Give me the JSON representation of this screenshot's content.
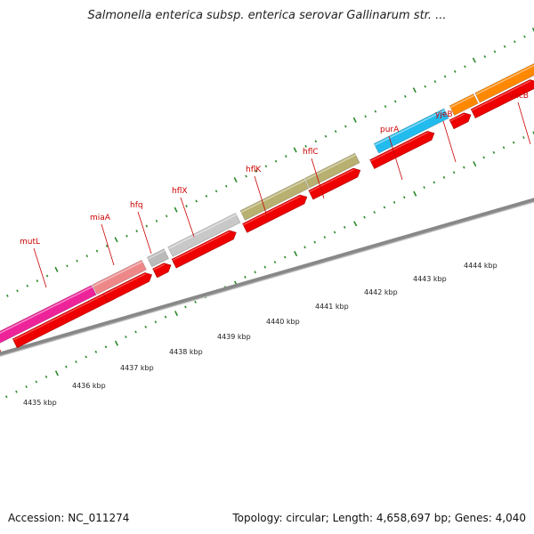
{
  "title": "Salmonella enterica subsp. enterica serovar Gallinarum str. ...",
  "accession": "Accession: NC_011274",
  "summary": "Topology: circular; Length: 4,658,697 bp; Genes: 4,040",
  "colors": {
    "cds": "#ee0000",
    "backbone": "#888888",
    "tick": "#2a8a2a",
    "label": "#cc0000"
  },
  "genes": [
    {
      "name": "mutL",
      "color": "#ee2299"
    },
    {
      "name": "miaA",
      "color": "#ee8888"
    },
    {
      "name": "hfq",
      "color": "#bbbbbb"
    },
    {
      "name": "hflX",
      "color": "#c8c8c8"
    },
    {
      "name": "hflK",
      "color": "#b8b070"
    },
    {
      "name": "hflC",
      "color": "#b8b070"
    },
    {
      "name": "purA",
      "color": "#22bbee"
    },
    {
      "name": "yjeB",
      "color": "#ff8800"
    },
    {
      "name": "vacB",
      "color": "#ff8800"
    }
  ],
  "kbp_labels": [
    "4435 kbp",
    "4436 kbp",
    "4437 kbp",
    "4438 kbp",
    "4439 kbp",
    "4440 kbp",
    "4441 kbp",
    "4442 kbp",
    "4443 kbp",
    "4444 kbp"
  ]
}
